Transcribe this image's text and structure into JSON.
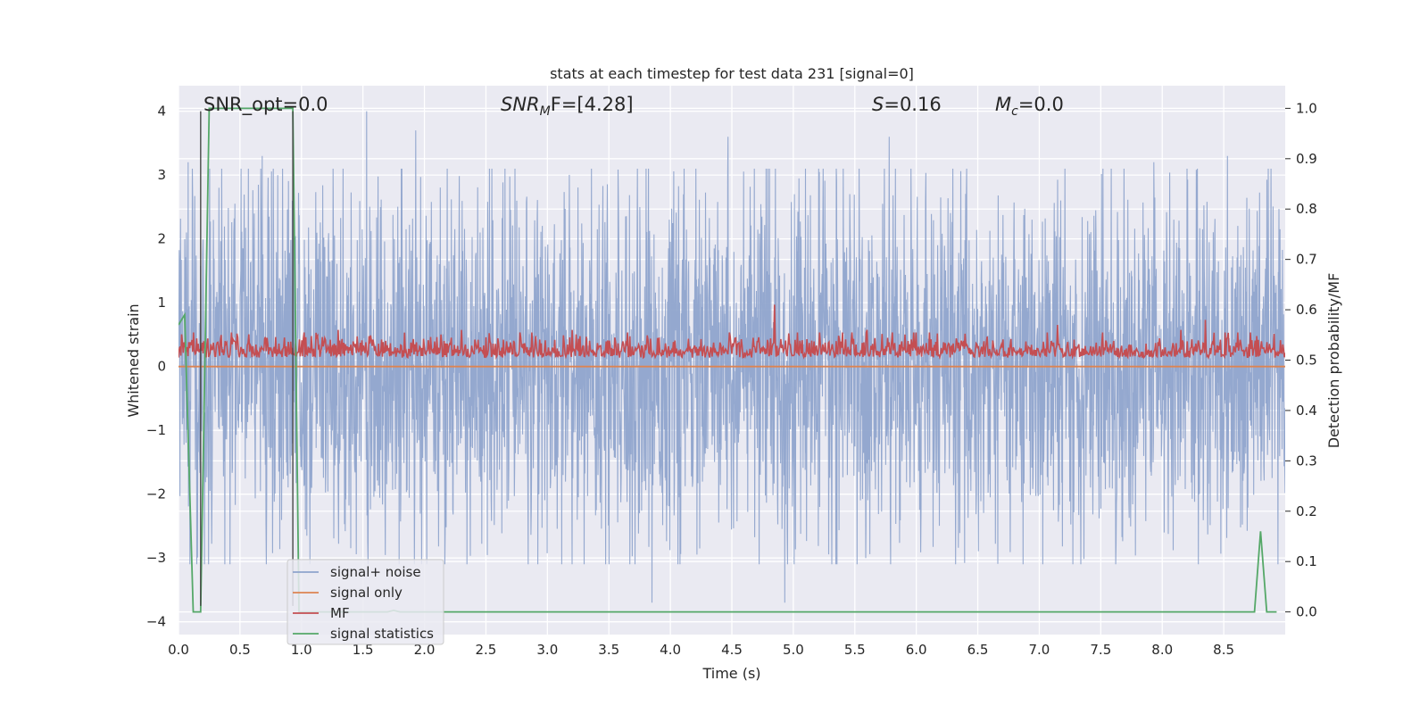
{
  "chart_data": {
    "type": "line",
    "title": "stats at each timestep for test data 231 [signal=0]",
    "xlabel": "Time (s)",
    "ylabel": "Whitened strain",
    "y2label": "Detection probability/MF",
    "xlim": [
      0.0,
      9.0
    ],
    "ylim": [
      -4.2,
      4.4
    ],
    "y2lim": [
      -0.045,
      1.045
    ],
    "x_ticks": [
      "0.0",
      "0.5",
      "1.0",
      "1.5",
      "2.0",
      "2.5",
      "3.0",
      "3.5",
      "4.0",
      "4.5",
      "5.0",
      "5.5",
      "6.0",
      "6.5",
      "7.0",
      "7.5",
      "8.0",
      "8.5"
    ],
    "y_ticks": [
      "4",
      "3",
      "2",
      "1",
      "0",
      "−1",
      "−2",
      "−3",
      "−4"
    ],
    "y2_ticks": [
      "1.0",
      "0.9",
      "0.8",
      "0.7",
      "0.6",
      "0.5",
      "0.4",
      "0.3",
      "0.2",
      "0.1",
      "0.0"
    ],
    "grid": true,
    "legend_position": "lower-left",
    "annotations": [
      {
        "id": "snr-opt",
        "text": "SNR_opt=0.0"
      },
      {
        "id": "snr-mf",
        "prefix": "SNR",
        "sub": "M",
        "suffix": "F=[4.28]"
      },
      {
        "id": "s-value",
        "prefix": "S",
        "suffix": "=0.16"
      },
      {
        "id": "mc-value",
        "prefix": "M",
        "sub": "c",
        "suffix": "=0.0"
      }
    ],
    "vertical_markers_x": [
      0.18,
      0.93
    ],
    "series": [
      {
        "name": "signal+ noise",
        "axis": "left",
        "color": "#8fa4cc",
        "style": "dense-noise",
        "typical_amplitude": 1.6,
        "peaks_x": [
          0.08,
          0.33,
          0.68,
          1.53,
          1.93,
          3.85,
          4.47,
          4.93,
          5.78,
          7.93,
          8.53
        ],
        "peaks_y": [
          3.2,
          2.8,
          3.3,
          4.0,
          3.7,
          -3.7,
          3.6,
          -3.7,
          3.6,
          3.2,
          3.3
        ]
      },
      {
        "name": "signal only",
        "axis": "left",
        "color": "#dd8452",
        "x": [
          0.0,
          9.0
        ],
        "y": [
          0.0,
          0.0
        ]
      },
      {
        "name": "MF",
        "axis": "right",
        "color": "#c44e52",
        "style": "noise-band",
        "baseline": 0.505,
        "range": [
          0.48,
          0.6
        ],
        "peaks_x": [
          0.35,
          1.3,
          2.3,
          3.2,
          4.85,
          5.6,
          7.15,
          8.15,
          8.35
        ],
        "peaks_y": [
          0.55,
          0.56,
          0.56,
          0.56,
          0.61,
          0.56,
          0.57,
          0.56,
          0.58
        ]
      },
      {
        "name": "signal statistics",
        "axis": "right",
        "color": "#55a868",
        "x": [
          0.0,
          0.05,
          0.12,
          0.18,
          0.25,
          0.93,
          0.98,
          1.7,
          1.75,
          1.8,
          8.75,
          8.8,
          8.85,
          8.93
        ],
        "y": [
          0.57,
          0.59,
          0.0,
          0.0,
          1.0,
          1.0,
          0.0,
          0.0,
          0.003,
          0.0,
          0.0,
          0.16,
          0.0,
          0.0
        ]
      }
    ]
  }
}
